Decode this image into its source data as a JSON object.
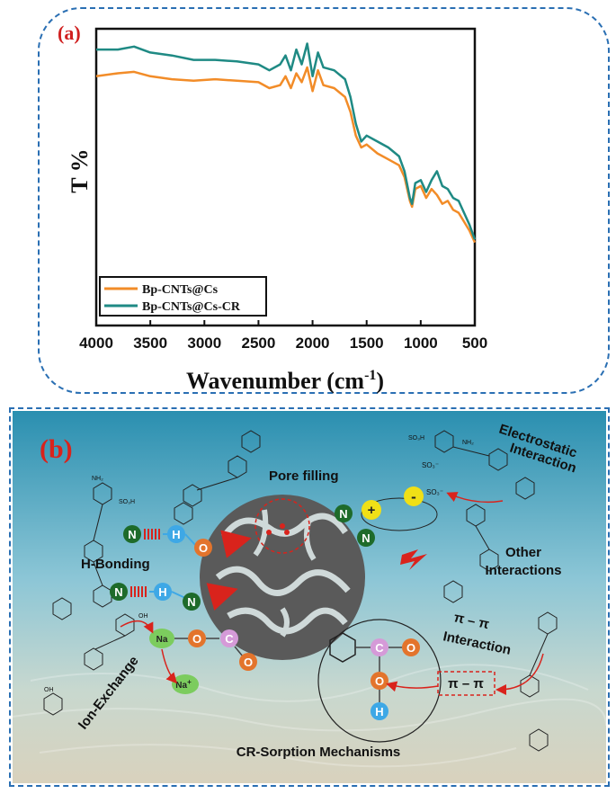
{
  "panel_a": {
    "label": "(a)",
    "chart_data": {
      "type": "line",
      "xlabel_main": "Wavenumber (cm",
      "xlabel_sup": "-1",
      "xlabel_close": ")",
      "ylabel": "T %",
      "xlim": [
        4000,
        500
      ],
      "x_ticks": [
        "4000",
        "3500",
        "3000",
        "2500",
        "2000",
        "1500",
        "1000",
        "500"
      ],
      "legend_position": "bottom-left",
      "series": [
        {
          "name": "Bp-CNTs@Cs",
          "color": "#f28c28",
          "x": [
            4000,
            3800,
            3650,
            3500,
            3300,
            3100,
            2900,
            2700,
            2500,
            2400,
            2300,
            2250,
            2200,
            2150,
            2100,
            2050,
            2000,
            1950,
            1900,
            1800,
            1700,
            1650,
            1600,
            1550,
            1500,
            1400,
            1300,
            1200,
            1150,
            1100,
            1080,
            1050,
            1000,
            950,
            900,
            850,
            800,
            750,
            700,
            650,
            600,
            550,
            500
          ],
          "y": [
            84,
            85,
            85.5,
            84,
            83,
            82.5,
            83,
            82.5,
            82,
            80,
            81,
            84,
            80,
            85,
            82,
            87,
            79,
            86,
            81,
            80,
            77,
            72,
            64,
            60,
            61,
            58,
            56,
            54,
            50,
            42,
            40,
            46,
            47,
            43,
            46,
            44,
            41,
            42,
            39,
            38,
            35,
            32,
            28
          ]
        },
        {
          "name": "Bp-CNTs@Cs-CR",
          "color": "#1f8a84",
          "x": [
            4000,
            3800,
            3650,
            3500,
            3300,
            3100,
            2900,
            2700,
            2500,
            2400,
            2300,
            2250,
            2200,
            2150,
            2100,
            2050,
            2000,
            1950,
            1900,
            1800,
            1700,
            1650,
            1600,
            1550,
            1500,
            1400,
            1300,
            1200,
            1150,
            1100,
            1080,
            1050,
            1000,
            950,
            900,
            850,
            800,
            750,
            700,
            650,
            600,
            550,
            500
          ],
          "y": [
            93,
            93,
            94,
            92,
            91,
            89.5,
            89.5,
            89,
            88,
            86,
            88,
            91,
            86,
            93,
            88,
            95,
            84,
            92,
            87,
            86,
            83,
            77,
            68,
            62,
            64,
            62,
            60,
            57,
            52,
            43,
            41,
            48,
            49,
            45,
            49,
            52,
            47,
            46,
            43,
            42,
            38,
            34,
            29
          ]
        }
      ]
    }
  },
  "panel_b": {
    "label": "(b)",
    "labels": {
      "pore_filling": "Pore filling",
      "electrostatic_1": "Electrostatic",
      "electrostatic_2": "Interaction",
      "h_bonding": "H-Bonding",
      "other_1": "Other",
      "other_2": "Interactions",
      "pi_pi_1": "π – π",
      "pi_pi_2": "Interaction",
      "pi_pi_box": "π – π",
      "ion_exchange": "Ion-Exchange",
      "bottom_title": "CR-Sorption Mechanisms"
    },
    "atoms": {
      "N": "N",
      "H": "H",
      "O": "O",
      "C": "C",
      "Na": "Na",
      "Na_plus": "Na",
      "plus_sign": "+",
      "plus": "+",
      "minus": "-"
    },
    "dye_texts": {
      "so3h": "SO₃H",
      "so3_minus": "SO₃⁻",
      "nh2": "NH₂",
      "oh": "OH"
    },
    "colors": {
      "N": "#1e6b2a",
      "H": "#3ea8e6",
      "O": "#e3742c",
      "C": "#d59ad8",
      "Na": "#7ccc5e",
      "ion_pos": "#f0e016",
      "ion_neg": "#f0e016",
      "arrow_red": "#d9231c",
      "adsorbent": "#555555",
      "frame": "#2a6fb3"
    }
  }
}
